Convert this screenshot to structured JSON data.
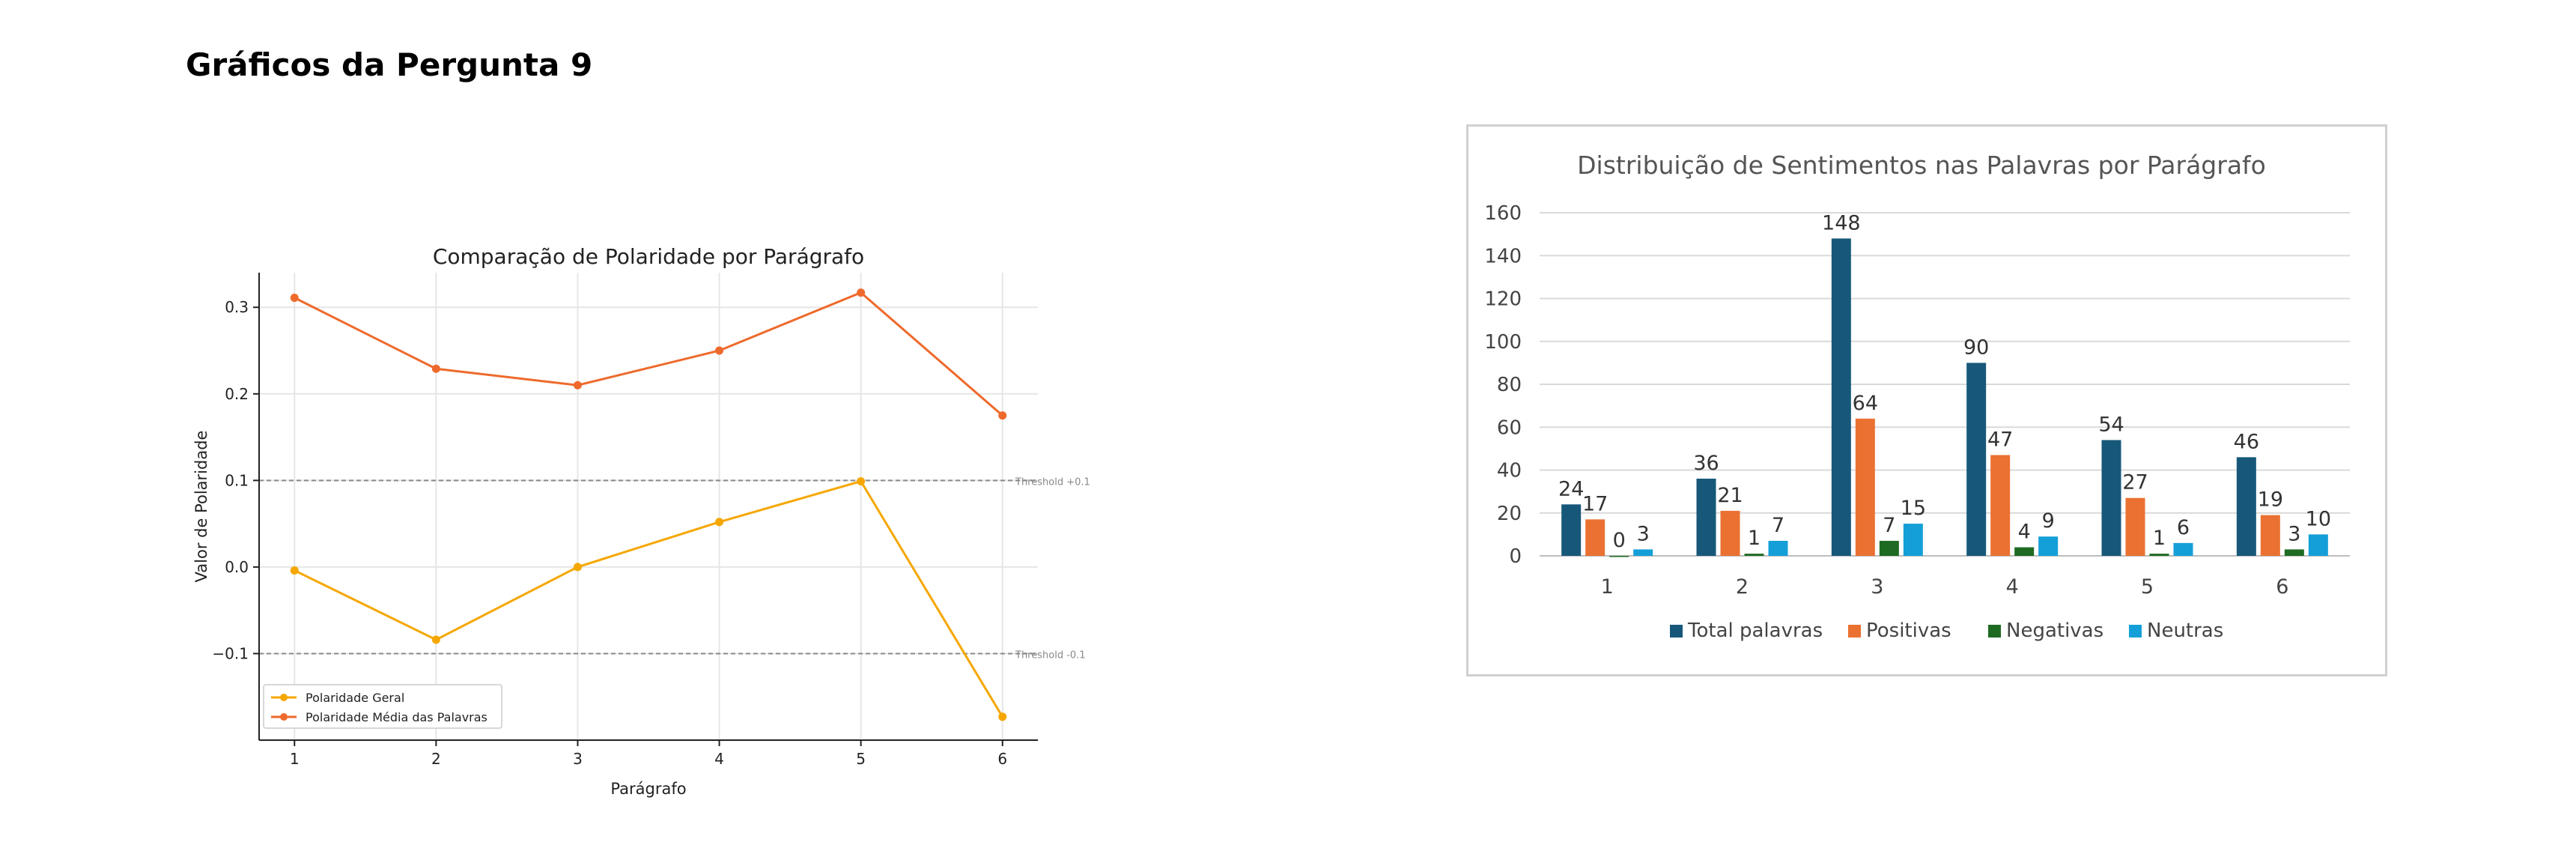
{
  "page": {
    "title": "Gráficos da Pergunta 9"
  },
  "chart_data": [
    {
      "type": "line",
      "title": "Comparação de Polaridade por Parágrafo",
      "xlabel": "Parágrafo",
      "ylabel": "Valor de Polaridade",
      "x": [
        1,
        2,
        3,
        4,
        5,
        6
      ],
      "xticks": [
        "1",
        "2",
        "3",
        "4",
        "5",
        "6"
      ],
      "yticks": [
        "−0.1",
        "0.0",
        "0.1",
        "0.2",
        "0.3"
      ],
      "ytick_values": [
        -0.1,
        0.0,
        0.1,
        0.2,
        0.3
      ],
      "ylim": [
        -0.2,
        0.34
      ],
      "xlim": [
        0.75,
        6.25
      ],
      "grid": true,
      "legend_position": "bottom-left",
      "series": [
        {
          "name": "Polaridade Geral",
          "color": "#f5a700",
          "values": [
            -0.004,
            -0.084,
            0.0,
            0.052,
            0.099,
            -0.173
          ]
        },
        {
          "name": "Polaridade Média das Palavras",
          "color": "#ee6a2c",
          "values": [
            0.311,
            0.229,
            0.21,
            0.25,
            0.317,
            0.175
          ]
        }
      ],
      "thresholds": [
        {
          "label": "Threshold +0.1",
          "value": 0.1
        },
        {
          "label": "Threshold -0.1",
          "value": -0.1
        }
      ]
    },
    {
      "type": "bar",
      "title": "Distribuição de Sentimentos nas Palavras por Parágrafo",
      "categories": [
        "1",
        "2",
        "3",
        "4",
        "5",
        "6"
      ],
      "yticks": [
        "0",
        "20",
        "40",
        "60",
        "80",
        "100",
        "120",
        "140",
        "160"
      ],
      "ytick_values": [
        0,
        20,
        40,
        60,
        80,
        100,
        120,
        140,
        160
      ],
      "ylim": [
        0,
        160
      ],
      "grid": true,
      "legend_position": "bottom",
      "series": [
        {
          "name": "Total palavras",
          "color": "#17587a",
          "values": [
            24,
            36,
            148,
            90,
            54,
            46
          ]
        },
        {
          "name": "Positivas",
          "color": "#ea7131",
          "values": [
            17,
            21,
            64,
            47,
            27,
            19
          ]
        },
        {
          "name": "Negativas",
          "color": "#1e6a22",
          "values": [
            0,
            1,
            7,
            4,
            1,
            3
          ]
        },
        {
          "name": "Neutras",
          "color": "#149fd8",
          "values": [
            3,
            7,
            15,
            9,
            6,
            10
          ]
        }
      ]
    }
  ]
}
